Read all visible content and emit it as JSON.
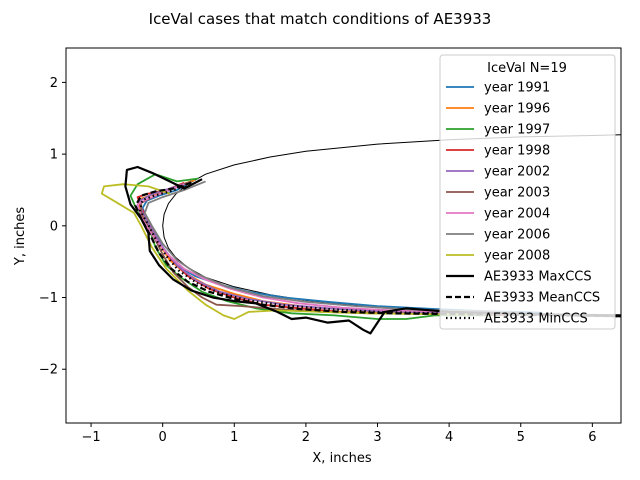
{
  "chart_data": {
    "type": "line",
    "title": "IceVal cases that match conditions of AE3933",
    "xlabel": "X, inches",
    "ylabel": "Y, inches",
    "xlim": [
      -1.35,
      6.4
    ],
    "ylim": [
      -2.75,
      2.48
    ],
    "xticks": [
      -1,
      0,
      1,
      2,
      3,
      4,
      5,
      6
    ],
    "yticks": [
      -2,
      -1,
      0,
      1,
      2
    ],
    "grid": false,
    "legend": {
      "placement": "top-right",
      "title": "IceVal N=19"
    },
    "airfoil": {
      "color": "#000000",
      "upper": [
        [
          0.0,
          0.0
        ],
        [
          0.02,
          0.16
        ],
        [
          0.08,
          0.31
        ],
        [
          0.18,
          0.44
        ],
        [
          0.35,
          0.58
        ],
        [
          0.6,
          0.72
        ],
        [
          1.0,
          0.85
        ],
        [
          1.5,
          0.96
        ],
        [
          2.0,
          1.04
        ],
        [
          3.0,
          1.14
        ],
        [
          4.0,
          1.2
        ],
        [
          5.0,
          1.24
        ],
        [
          6.0,
          1.26
        ],
        [
          6.4,
          1.27
        ]
      ],
      "lower": [
        [
          0.0,
          0.0
        ],
        [
          0.02,
          -0.16
        ],
        [
          0.08,
          -0.31
        ],
        [
          0.18,
          -0.44
        ],
        [
          0.35,
          -0.58
        ],
        [
          0.6,
          -0.72
        ],
        [
          1.0,
          -0.85
        ],
        [
          1.5,
          -0.96
        ],
        [
          2.0,
          -1.04
        ],
        [
          3.0,
          -1.14
        ],
        [
          4.0,
          -1.2
        ],
        [
          5.0,
          -1.24
        ],
        [
          6.0,
          -1.26
        ],
        [
          6.4,
          -1.27
        ]
      ]
    },
    "series": [
      {
        "name": "year 1991",
        "color": "#1f77b4",
        "dash": "solid",
        "points": [
          [
            0.4,
            0.62
          ],
          [
            0.2,
            0.5
          ],
          [
            -0.05,
            0.42
          ],
          [
            -0.22,
            0.35
          ],
          [
            -0.28,
            0.25
          ],
          [
            -0.22,
            0.1
          ],
          [
            -0.1,
            -0.12
          ],
          [
            0.05,
            -0.38
          ],
          [
            0.2,
            -0.55
          ],
          [
            0.45,
            -0.7
          ],
          [
            0.8,
            -0.82
          ],
          [
            1.2,
            -0.92
          ],
          [
            1.7,
            -1.0
          ],
          [
            2.3,
            -1.06
          ],
          [
            3.0,
            -1.12
          ],
          [
            3.8,
            -1.16
          ],
          [
            4.5,
            -1.19
          ],
          [
            5.3,
            -1.21
          ]
        ]
      },
      {
        "name": "year 1996",
        "color": "#ff7f0e",
        "dash": "solid",
        "points": [
          [
            0.45,
            0.64
          ],
          [
            0.2,
            0.55
          ],
          [
            -0.1,
            0.45
          ],
          [
            -0.3,
            0.38
          ],
          [
            -0.33,
            0.22
          ],
          [
            -0.2,
            0.05
          ],
          [
            -0.05,
            -0.25
          ],
          [
            0.1,
            -0.48
          ],
          [
            0.3,
            -0.65
          ],
          [
            0.6,
            -0.82
          ],
          [
            1.0,
            -0.95
          ],
          [
            1.4,
            -1.05
          ],
          [
            2.0,
            -1.13
          ],
          [
            2.7,
            -1.18
          ],
          [
            3.5,
            -1.21
          ],
          [
            4.3,
            -1.22
          ],
          [
            5.0,
            -1.23
          ]
        ]
      },
      {
        "name": "year 1997",
        "color": "#2ca02c",
        "dash": "solid",
        "points": [
          [
            0.5,
            0.66
          ],
          [
            0.2,
            0.62
          ],
          [
            -0.1,
            0.72
          ],
          [
            -0.35,
            0.58
          ],
          [
            -0.45,
            0.42
          ],
          [
            -0.35,
            0.2
          ],
          [
            -0.2,
            0.0
          ],
          [
            -0.1,
            -0.3
          ],
          [
            0.05,
            -0.55
          ],
          [
            0.25,
            -0.72
          ],
          [
            0.55,
            -0.92
          ],
          [
            0.9,
            -1.05
          ],
          [
            1.3,
            -1.15
          ],
          [
            1.8,
            -1.22
          ],
          [
            2.4,
            -1.25
          ],
          [
            3.0,
            -1.3
          ],
          [
            3.4,
            -1.3
          ],
          [
            3.8,
            -1.25
          ],
          [
            4.5,
            -1.25
          ],
          [
            5.2,
            -1.23
          ]
        ]
      },
      {
        "name": "year 1998",
        "color": "#d62728",
        "dash": "solid",
        "points": [
          [
            0.3,
            0.6
          ],
          [
            0.05,
            0.5
          ],
          [
            -0.2,
            0.45
          ],
          [
            -0.35,
            0.4
          ],
          [
            -0.3,
            0.25
          ],
          [
            -0.18,
            0.05
          ],
          [
            -0.05,
            -0.25
          ],
          [
            0.15,
            -0.5
          ],
          [
            0.35,
            -0.7
          ],
          [
            0.65,
            -0.88
          ],
          [
            1.0,
            -1.0
          ],
          [
            1.4,
            -1.1
          ],
          [
            1.9,
            -1.15
          ],
          [
            2.5,
            -1.2
          ],
          [
            3.2,
            -1.22
          ],
          [
            4.0,
            -1.23
          ],
          [
            4.8,
            -1.24
          ]
        ]
      },
      {
        "name": "year 2002",
        "color": "#9467bd",
        "dash": "solid",
        "points": [
          [
            0.35,
            0.6
          ],
          [
            0.1,
            0.52
          ],
          [
            -0.15,
            0.44
          ],
          [
            -0.32,
            0.35
          ],
          [
            -0.28,
            0.18
          ],
          [
            -0.15,
            -0.05
          ],
          [
            0.0,
            -0.3
          ],
          [
            0.2,
            -0.55
          ],
          [
            0.45,
            -0.75
          ],
          [
            0.8,
            -0.92
          ],
          [
            1.2,
            -1.02
          ],
          [
            1.7,
            -1.1
          ],
          [
            2.3,
            -1.15
          ],
          [
            3.0,
            -1.19
          ],
          [
            3.8,
            -1.21
          ],
          [
            4.6,
            -1.22
          ]
        ]
      },
      {
        "name": "year 2003",
        "color": "#8c564b",
        "dash": "solid",
        "points": [
          [
            0.4,
            0.62
          ],
          [
            0.15,
            0.52
          ],
          [
            -0.1,
            0.42
          ],
          [
            -0.3,
            0.32
          ],
          [
            -0.3,
            0.15
          ],
          [
            -0.15,
            -0.1
          ],
          [
            0.0,
            -0.4
          ],
          [
            0.15,
            -0.65
          ],
          [
            0.35,
            -0.85
          ],
          [
            0.55,
            -1.0
          ],
          [
            0.75,
            -1.1
          ],
          [
            1.1,
            -1.12
          ],
          [
            1.6,
            -1.16
          ],
          [
            2.2,
            -1.2
          ],
          [
            2.9,
            -1.22
          ],
          [
            3.7,
            -1.23
          ],
          [
            4.5,
            -1.24
          ]
        ]
      },
      {
        "name": "year 2004",
        "color": "#e377c2",
        "dash": "solid",
        "points": [
          [
            0.3,
            0.58
          ],
          [
            0.05,
            0.48
          ],
          [
            -0.2,
            0.38
          ],
          [
            -0.35,
            0.3
          ],
          [
            -0.3,
            0.12
          ],
          [
            -0.15,
            -0.12
          ],
          [
            0.05,
            -0.38
          ],
          [
            0.3,
            -0.6
          ],
          [
            0.6,
            -0.75
          ],
          [
            0.95,
            -0.88
          ],
          [
            1.4,
            -1.0
          ],
          [
            1.9,
            -1.08
          ],
          [
            2.5,
            -1.14
          ],
          [
            3.2,
            -1.18
          ],
          [
            4.0,
            -1.2
          ],
          [
            4.7,
            -1.22
          ]
        ]
      },
      {
        "name": "year 2006",
        "color": "#7f7f7f",
        "dash": "solid",
        "points": [
          [
            0.6,
            0.62
          ],
          [
            0.3,
            0.5
          ],
          [
            0.0,
            0.4
          ],
          [
            -0.2,
            0.32
          ],
          [
            -0.25,
            0.18
          ],
          [
            -0.15,
            0.0
          ],
          [
            0.0,
            -0.25
          ],
          [
            0.2,
            -0.48
          ],
          [
            0.5,
            -0.68
          ],
          [
            0.9,
            -0.85
          ],
          [
            1.4,
            -0.98
          ],
          [
            2.0,
            -1.06
          ],
          [
            2.7,
            -1.12
          ],
          [
            3.5,
            -1.17
          ],
          [
            4.3,
            -1.19
          ],
          [
            5.0,
            -1.21
          ]
        ]
      },
      {
        "name": "year 2008",
        "color": "#bcbd22",
        "dash": "solid",
        "points": [
          [
            0.1,
            0.45
          ],
          [
            -0.2,
            0.55
          ],
          [
            -0.55,
            0.58
          ],
          [
            -0.82,
            0.55
          ],
          [
            -0.85,
            0.45
          ],
          [
            -0.6,
            0.3
          ],
          [
            -0.4,
            0.18
          ],
          [
            -0.3,
            0.0
          ],
          [
            -0.15,
            -0.3
          ],
          [
            0.05,
            -0.6
          ],
          [
            0.35,
            -0.9
          ],
          [
            0.6,
            -1.1
          ],
          [
            0.85,
            -1.25
          ],
          [
            1.0,
            -1.3
          ],
          [
            1.2,
            -1.2
          ],
          [
            1.6,
            -1.18
          ],
          [
            2.2,
            -1.2
          ],
          [
            2.9,
            -1.22
          ],
          [
            3.6,
            -1.23
          ],
          [
            4.3,
            -1.24
          ]
        ]
      },
      {
        "name": "AE3933 MaxCCS",
        "color": "#000000",
        "dash": "solid",
        "points": [
          [
            0.55,
            0.65
          ],
          [
            0.3,
            0.52
          ],
          [
            0.1,
            0.62
          ],
          [
            -0.15,
            0.74
          ],
          [
            -0.35,
            0.82
          ],
          [
            -0.5,
            0.78
          ],
          [
            -0.52,
            0.55
          ],
          [
            -0.45,
            0.3
          ],
          [
            -0.3,
            0.1
          ],
          [
            -0.2,
            -0.1
          ],
          [
            -0.18,
            -0.35
          ],
          [
            -0.05,
            -0.55
          ],
          [
            0.15,
            -0.75
          ],
          [
            0.4,
            -0.9
          ],
          [
            0.7,
            -1.0
          ],
          [
            1.0,
            -1.05
          ],
          [
            1.3,
            -1.08
          ],
          [
            1.6,
            -1.2
          ],
          [
            1.8,
            -1.3
          ],
          [
            2.0,
            -1.28
          ],
          [
            2.3,
            -1.35
          ],
          [
            2.6,
            -1.32
          ],
          [
            2.8,
            -1.45
          ],
          [
            2.9,
            -1.5
          ],
          [
            3.0,
            -1.35
          ],
          [
            3.1,
            -1.2
          ],
          [
            3.4,
            -1.15
          ],
          [
            4.0,
            -1.2
          ],
          [
            4.8,
            -1.22
          ],
          [
            5.6,
            -1.24
          ],
          [
            6.4,
            -1.25
          ]
        ]
      },
      {
        "name": "AE3933 MeanCCS",
        "color": "#000000",
        "dash": "dashed",
        "points": [
          [
            0.4,
            0.6
          ],
          [
            0.15,
            0.52
          ],
          [
            -0.1,
            0.48
          ],
          [
            -0.3,
            0.42
          ],
          [
            -0.38,
            0.28
          ],
          [
            -0.3,
            0.1
          ],
          [
            -0.18,
            -0.12
          ],
          [
            -0.05,
            -0.38
          ],
          [
            0.12,
            -0.6
          ],
          [
            0.35,
            -0.78
          ],
          [
            0.65,
            -0.92
          ],
          [
            1.0,
            -1.02
          ],
          [
            1.4,
            -1.1
          ],
          [
            1.9,
            -1.16
          ],
          [
            2.5,
            -1.2
          ],
          [
            3.2,
            -1.22
          ],
          [
            4.0,
            -1.23
          ],
          [
            4.8,
            -1.24
          ],
          [
            5.6,
            -1.25
          ],
          [
            6.4,
            -1.26
          ]
        ]
      },
      {
        "name": "AE3933 MinCCS",
        "color": "#000000",
        "dash": "dotted",
        "points": [
          [
            0.3,
            0.55
          ],
          [
            0.1,
            0.48
          ],
          [
            -0.12,
            0.42
          ],
          [
            -0.28,
            0.36
          ],
          [
            -0.32,
            0.22
          ],
          [
            -0.22,
            0.05
          ],
          [
            -0.1,
            -0.18
          ],
          [
            0.05,
            -0.42
          ],
          [
            0.22,
            -0.62
          ],
          [
            0.48,
            -0.8
          ],
          [
            0.8,
            -0.94
          ],
          [
            1.2,
            -1.04
          ],
          [
            1.7,
            -1.11
          ],
          [
            2.3,
            -1.16
          ],
          [
            3.0,
            -1.2
          ],
          [
            3.8,
            -1.22
          ],
          [
            4.6,
            -1.23
          ],
          [
            5.4,
            -1.24
          ],
          [
            6.2,
            -1.25
          ]
        ]
      }
    ]
  }
}
